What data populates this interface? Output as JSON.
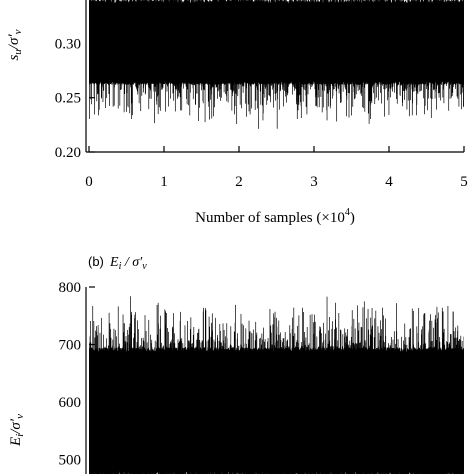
{
  "chart_data": [
    {
      "type": "line",
      "panel_label": "",
      "ylabel": "s_u / σ'_v",
      "xlabel": "Number of samples (×10^4)",
      "x_ticks": [
        "0",
        "1",
        "2",
        "3",
        "4",
        "5"
      ],
      "y_ticks": [
        "0.20",
        "0.25",
        "0.30"
      ],
      "xlim": [
        0,
        5
      ],
      "ylim": [
        0.2,
        0.34
      ],
      "series": [
        {
          "color": "#000000",
          "n_samples": 50000,
          "mean": 0.3,
          "band_low": 0.262,
          "band_high": 0.34,
          "spike_min": 0.218,
          "spike_max": 0.34
        }
      ]
    },
    {
      "type": "line",
      "panel_label": "(b)",
      "panel_title": "E_i / σ'_v",
      "ylabel": "E_i / σ'_v",
      "y_ticks": [
        "500",
        "600",
        "700",
        "800"
      ],
      "xlim": [
        0,
        5
      ],
      "ylim": [
        475,
        800
      ],
      "series": [
        {
          "color": "#000000",
          "n_samples": 50000,
          "mean": 600,
          "band_low": 470,
          "band_high": 695,
          "spike_min": 470,
          "spike_max": 790
        }
      ]
    }
  ],
  "text": {
    "xlabel_main": "Number of samples (×10",
    "xlabel_sup": "4",
    "xlabel_end": ")",
    "panel_b_label": "(b)"
  }
}
